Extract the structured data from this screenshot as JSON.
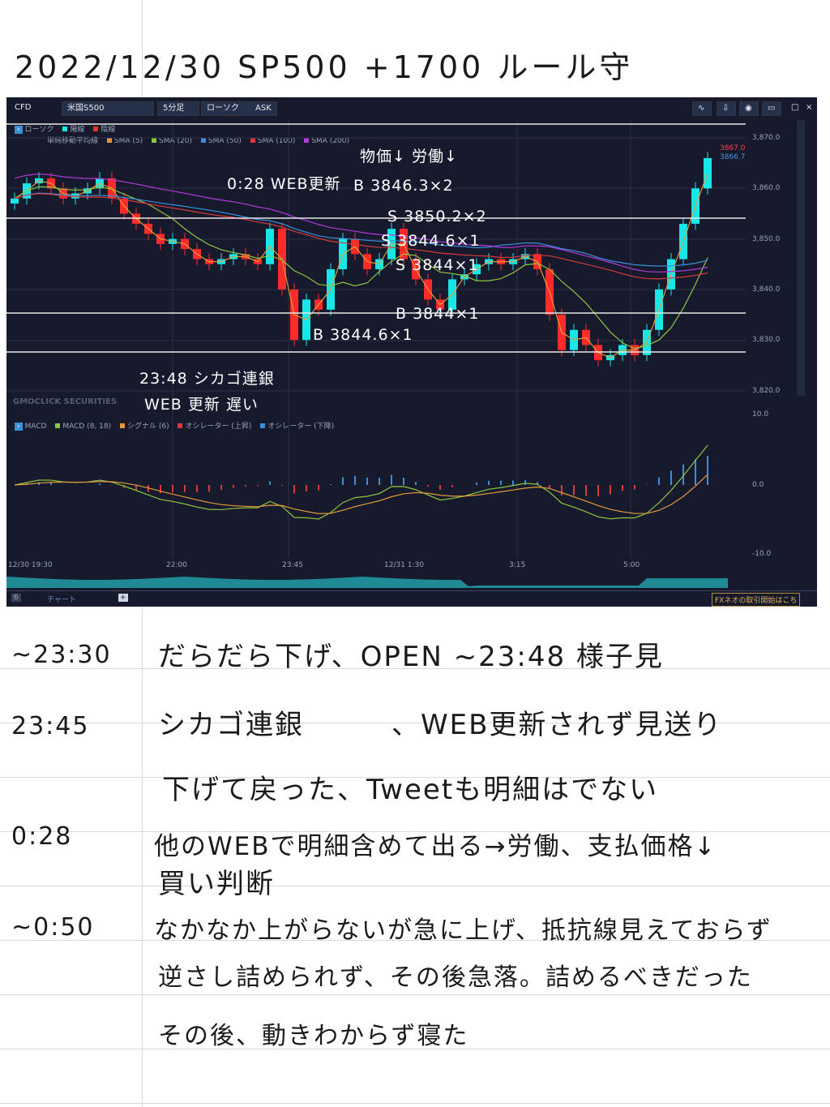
{
  "page_title": "2022/12/30 SP500 +1700 ルール守",
  "chart": {
    "toolbar": {
      "product": "CFD",
      "symbol": "米国S500",
      "interval": "5分足",
      "style": "ローソク",
      "side": "ASK"
    },
    "legend_row1": {
      "label": "ローソク",
      "up": "陽線",
      "down": "陰線"
    },
    "legend_row2": {
      "label": "単純移動平均線",
      "items": [
        "SMA (5)",
        "SMA (20)",
        "SMA (50)",
        "SMA (100)",
        "SMA (200)"
      ]
    },
    "sma_colors": [
      "#e39b3a",
      "#8cc63f",
      "#3a8fd9",
      "#d83a3a",
      "#b23ad8"
    ],
    "price_axis": [
      "3,870.0",
      "3,860.0",
      "3,850.0",
      "3,840.0",
      "3,830.0",
      "3,820.0"
    ],
    "ask_price": "3867.0",
    "bid_price": "3866.7",
    "watermark": "GMOCLICK SECURITIES",
    "macd_legend": {
      "label": "MACD",
      "items": [
        "MACD (8, 18)",
        "シグナル (6)",
        "オシレーター (上昇)",
        "オシレーター (下降)"
      ]
    },
    "macd_axis": [
      "10.0",
      "0.0",
      "-10.0"
    ],
    "time_axis": [
      "12/30 19:30",
      "22:00",
      "23:45",
      "12/31 1:30",
      "3:15",
      "5:00"
    ],
    "bottom_tab_count": "6",
    "bottom_tab": "チャート",
    "promo": "FXネオの取引開始はこち",
    "up_color": "#19e6e6",
    "down_color": "#ff2a2a",
    "closes": [
      3858,
      3861,
      3862,
      3860,
      3858,
      3859,
      3860,
      3862,
      3858,
      3855,
      3853,
      3851,
      3849,
      3850,
      3848,
      3846,
      3845,
      3846,
      3847,
      3846,
      3845,
      3852,
      3840,
      3830,
      3838,
      3836,
      3844,
      3850,
      3847,
      3844,
      3846,
      3852,
      3846,
      3842,
      3838,
      3836,
      3842,
      3843,
      3845,
      3846,
      3845,
      3846,
      3847,
      3844,
      3835,
      3828,
      3832,
      3829,
      3826,
      3827,
      3829,
      3827,
      3832,
      3840,
      3846,
      3853,
      3860,
      3866
    ],
    "annotations": {
      "a1": "0:28 WEB更新",
      "a2": "物価↓ 労働↓",
      "a3": "B 3846.3×2",
      "a4": "S 3850.2×2",
      "a5": "S 3844.6×1",
      "a6": "S 3844×1",
      "a7": "B 3844×1",
      "a8": "B 3844.6×1",
      "a9": "23:48 シカゴ連銀",
      "a10": "WEB 更新 遅い"
    }
  },
  "notes": [
    {
      "time": "~23:30",
      "text": "だらだら下げ、OPEN ~23:48 様子見"
    },
    {
      "time": "23:45",
      "text": "シカゴ連銀　　　、WEB更新されず見送り"
    },
    {
      "time": "",
      "text": "下げて戻った、Tweetも明細はでない"
    },
    {
      "time": "0:28",
      "text": "他のWEBで明細含めて出る→労働、支払価格↓"
    },
    {
      "time": "",
      "text": "買い判断"
    },
    {
      "time": "~0:50",
      "text": "なかなか上がらないが急に上げ、抵抗線見えておらず"
    },
    {
      "time": "",
      "text": "逆さし詰められず、その後急落。詰めるべきだった"
    },
    {
      "time": "",
      "text": "その後、動きわからず寝た"
    }
  ]
}
